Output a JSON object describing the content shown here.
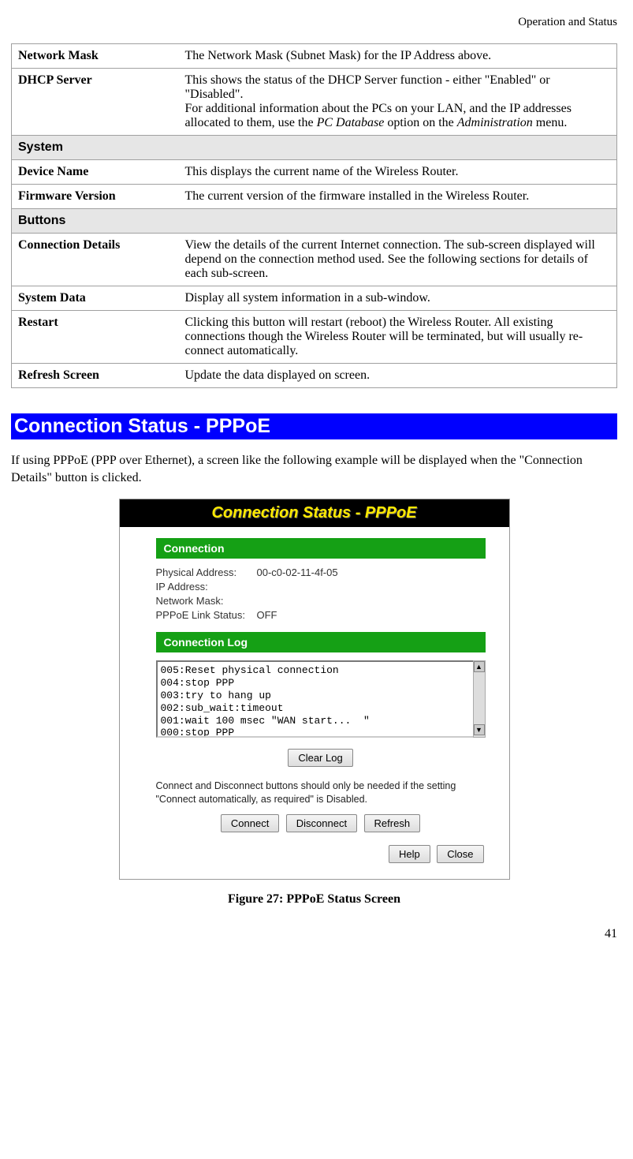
{
  "header": {
    "section": "Operation and Status"
  },
  "table": {
    "rows": [
      {
        "label": "Network Mask",
        "desc_html": "The Network Mask (Subnet Mask) for the IP Address above."
      },
      {
        "label": "DHCP Server",
        "desc_html": "This shows the status of the DHCP Server function - either \"Enabled\" or \"Disabled\".<p>For additional information about the PCs on your LAN, and the IP addresses allocated to them, use the <span class=\"italic\">PC Database</span> option on the <span class=\"italic\">Administration</span> menu.</p>"
      }
    ],
    "section_system": "System",
    "system_rows": [
      {
        "label": "Device Name",
        "desc_html": "This displays the current name of the Wireless Router."
      },
      {
        "label": "Firmware Version",
        "desc_html": "The current version of the firmware installed in the Wireless Router."
      }
    ],
    "section_buttons": "Buttons",
    "buttons_rows": [
      {
        "label": "Connection Details",
        "desc_html": "View the details of the current Internet connection. The sub-screen displayed will depend on the connection method used. See the following sections for details of each sub-screen."
      },
      {
        "label": "System Data",
        "desc_html": "Display all system information in a sub-window."
      },
      {
        "label": "Restart",
        "desc_html": "Clicking this button will restart (reboot) the Wireless Router. All existing connections though the Wireless Router will be terminated, but will usually re-connect automatically."
      },
      {
        "label": "Refresh Screen",
        "desc_html": "Update the data displayed on screen."
      }
    ]
  },
  "heading": "Connection Status - PPPoE",
  "intro": "If using PPPoE (PPP over Ethernet), a screen like the following example will be displayed when the \"Connection Details\" button is clicked.",
  "screenshot": {
    "title": "Connection Status - PPPoE",
    "sub_connection": "Connection",
    "fields": [
      {
        "k": "Physical Address:",
        "v": "00-c0-02-11-4f-05"
      },
      {
        "k": "IP Address:",
        "v": ""
      },
      {
        "k": "Network Mask:",
        "v": ""
      },
      {
        "k": "PPPoE Link Status:",
        "v": "OFF"
      }
    ],
    "sub_log": "Connection Log",
    "log": "005:Reset physical connection\n004:stop PPP\n003:try to hang up\n002:sub_wait:timeout\n001:wait 100 msec \"WAN start...  \"\n000:stop PPP",
    "btn_clear": "Clear Log",
    "note": "Connect and Disconnect buttons should only be needed if the setting \"Connect automatically, as required\" is Disabled.",
    "btn_connect": "Connect",
    "btn_disconnect": "Disconnect",
    "btn_refresh": "Refresh",
    "btn_help": "Help",
    "btn_close": "Close"
  },
  "figure_caption": "Figure 27: PPPoE Status Screen",
  "page_number": "41"
}
